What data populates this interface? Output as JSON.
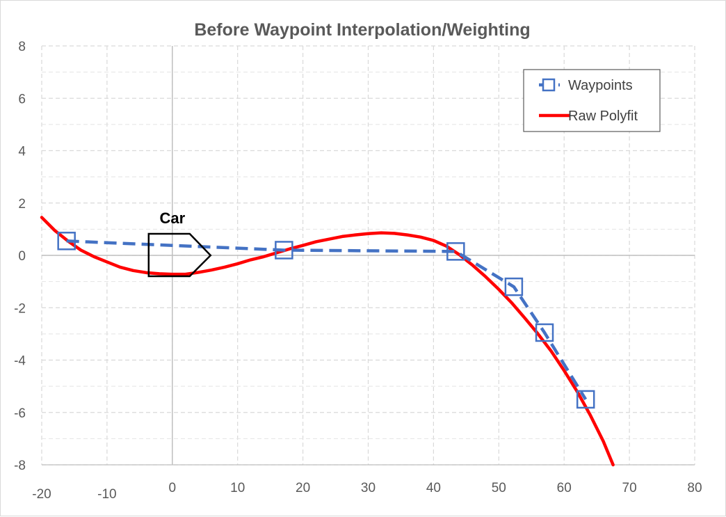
{
  "chart_data": {
    "type": "scatter",
    "title": "Before Waypoint Interpolation/Weighting",
    "xlabel": "",
    "ylabel": "",
    "xlim": [
      -20,
      80
    ],
    "ylim": [
      -8,
      8
    ],
    "x_ticks": [
      "-20",
      "-10",
      "0",
      "10",
      "20",
      "30",
      "40",
      "50",
      "60",
      "70",
      "80"
    ],
    "y_ticks": [
      "8",
      "6",
      "4",
      "2",
      "0",
      "-2",
      "-4",
      "-6",
      "-8"
    ],
    "grid": true,
    "legend_position": "top-right",
    "series": [
      {
        "name": "Waypoints",
        "color": "#4472C4",
        "style": "dashed line with square markers",
        "x": [
          -16.2,
          17.1,
          43.4,
          52.3,
          57.0,
          63.3
        ],
        "y": [
          0.55,
          0.2,
          0.15,
          -1.2,
          -2.95,
          -5.5
        ]
      },
      {
        "name": "Raw Polyfit",
        "color": "#FF0000",
        "style": "solid line",
        "x": [
          -20,
          -18,
          -16,
          -14,
          -12,
          -10,
          -8,
          -6,
          -4,
          -2,
          0,
          2,
          4,
          6,
          8,
          10,
          12,
          14,
          16,
          18,
          20,
          22,
          24,
          26,
          28,
          30,
          32,
          34,
          36,
          38,
          40,
          42,
          44,
          46,
          48,
          50,
          52,
          54,
          56,
          58,
          60,
          62,
          64,
          66,
          67.5
        ],
        "y": [
          1.45,
          0.95,
          0.55,
          0.2,
          -0.05,
          -0.25,
          -0.45,
          -0.58,
          -0.66,
          -0.7,
          -0.72,
          -0.72,
          -0.65,
          -0.56,
          -0.45,
          -0.32,
          -0.17,
          -0.05,
          0.1,
          0.25,
          0.38,
          0.52,
          0.62,
          0.72,
          0.78,
          0.83,
          0.86,
          0.84,
          0.78,
          0.7,
          0.57,
          0.35,
          0.02,
          -0.38,
          -0.82,
          -1.3,
          -1.82,
          -2.4,
          -3.0,
          -3.65,
          -4.4,
          -5.2,
          -6.1,
          -7.1,
          -8.0
        ]
      }
    ],
    "annotations": [
      {
        "text": "Car",
        "x": 0,
        "y": 0,
        "shape": "pentagon arrow outline"
      }
    ]
  }
}
